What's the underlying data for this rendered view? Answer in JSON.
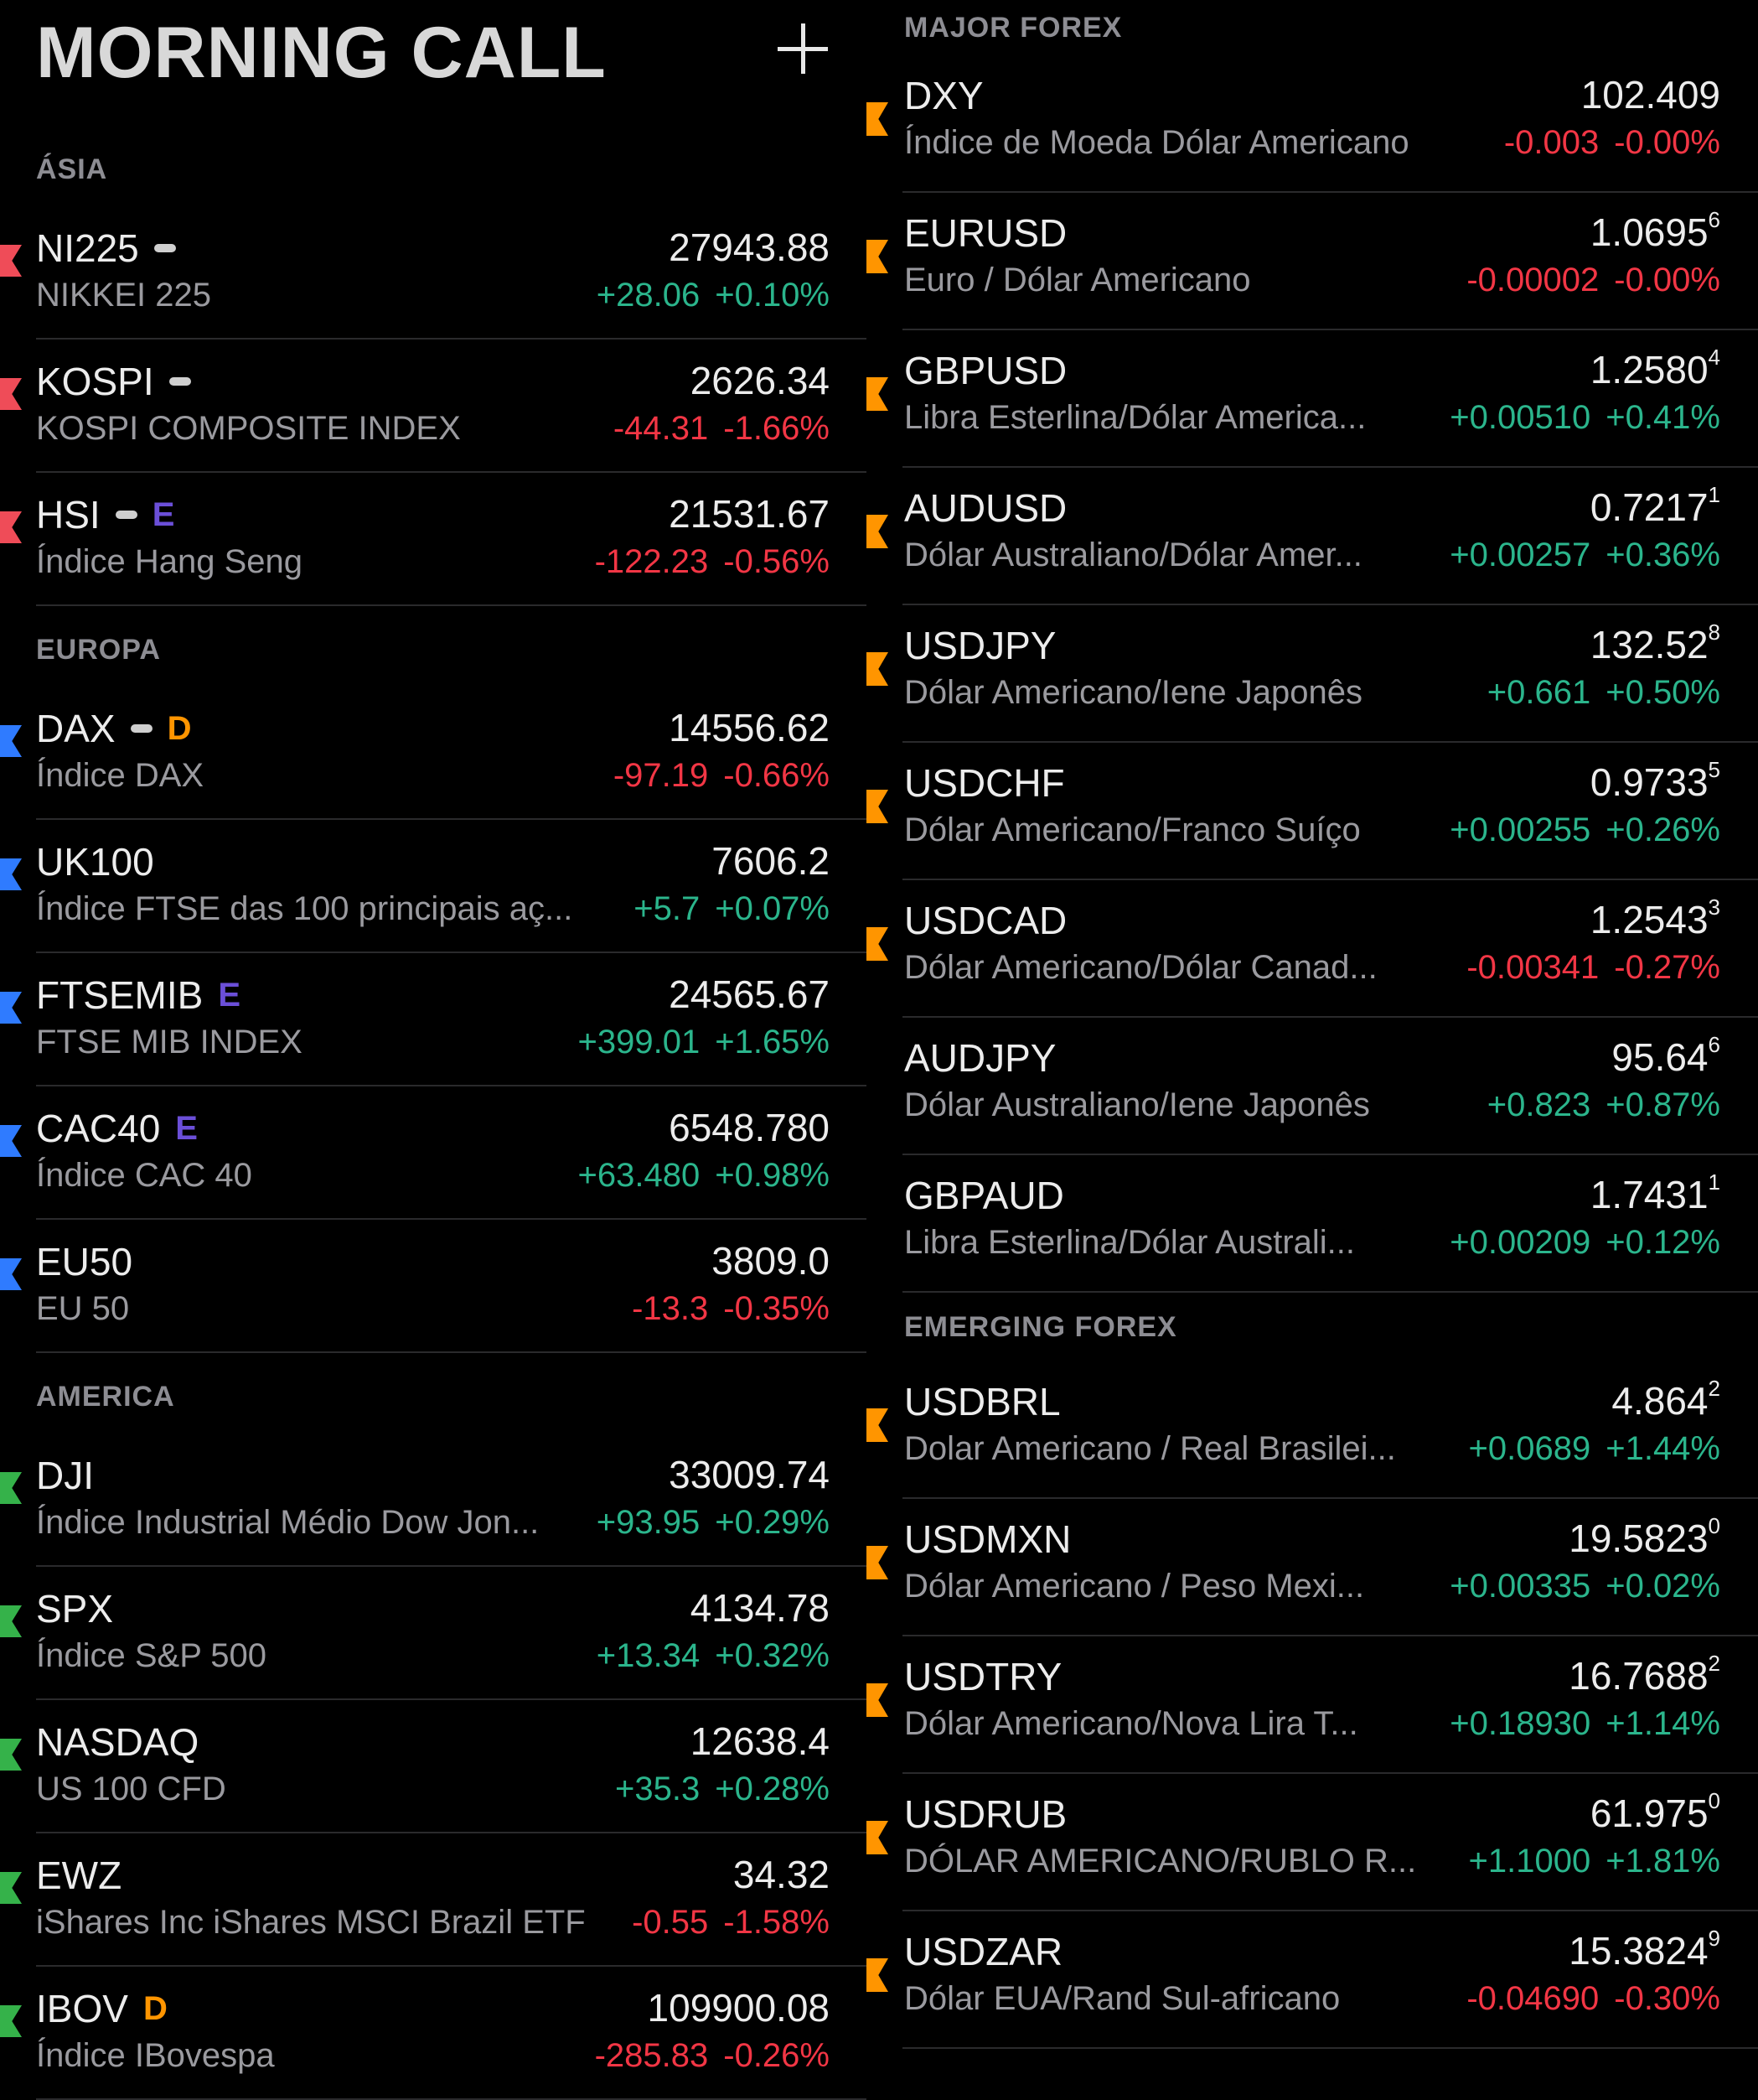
{
  "app": {
    "title": "MORNING CALL"
  },
  "colors": {
    "up": "#2bb58c",
    "down": "#f23645",
    "flag_asia": "#ef4c58",
    "flag_europe": "#2f7bff",
    "flag_america": "#35b24a",
    "flag_forex": "#ff9500",
    "badge_E": "#6b4fd8",
    "badge_D": "#ff9500"
  },
  "left": {
    "sections": [
      {
        "title": "ÁSIA",
        "flag": "red",
        "rows": [
          {
            "symbol": "NI225",
            "dash": true,
            "badge": "",
            "desc": "NIKKEI 225",
            "price": "27943.88",
            "sup": "",
            "chg": "+28.06",
            "pct": "+0.10%",
            "dir": "up"
          },
          {
            "symbol": "KOSPI",
            "dash": true,
            "badge": "",
            "desc": "KOSPI COMPOSITE INDEX",
            "price": "2626.34",
            "sup": "",
            "chg": "-44.31",
            "pct": "-1.66%",
            "dir": "down"
          },
          {
            "symbol": "HSI",
            "dash": true,
            "badge": "E",
            "desc": "Índice Hang Seng",
            "price": "21531.67",
            "sup": "",
            "chg": "-122.23",
            "pct": "-0.56%",
            "dir": "down"
          }
        ]
      },
      {
        "title": "EUROPA",
        "flag": "blue",
        "rows": [
          {
            "symbol": "DAX",
            "dash": true,
            "badge": "D",
            "desc": "Índice DAX",
            "price": "14556.62",
            "sup": "",
            "chg": "-97.19",
            "pct": "-0.66%",
            "dir": "down"
          },
          {
            "symbol": "UK100",
            "dash": false,
            "badge": "",
            "desc": "Índice FTSE das 100 principais aç...",
            "price": "7606.2",
            "sup": "",
            "chg": "+5.7",
            "pct": "+0.07%",
            "dir": "up"
          },
          {
            "symbol": "FTSEMIB",
            "dash": false,
            "badge": "E",
            "desc": "FTSE MIB INDEX",
            "price": "24565.67",
            "sup": "",
            "chg": "+399.01",
            "pct": "+1.65%",
            "dir": "up"
          },
          {
            "symbol": "CAC40",
            "dash": false,
            "badge": "E",
            "desc": "Índice CAC 40",
            "price": "6548.780",
            "sup": "",
            "chg": "+63.480",
            "pct": "+0.98%",
            "dir": "up"
          },
          {
            "symbol": "EU50",
            "dash": false,
            "badge": "",
            "desc": "EU 50",
            "price": "3809.0",
            "sup": "",
            "chg": "-13.3",
            "pct": "-0.35%",
            "dir": "down"
          }
        ]
      },
      {
        "title": "AMERICA",
        "flag": "green",
        "rows": [
          {
            "symbol": "DJI",
            "dash": false,
            "badge": "",
            "desc": "Índice Industrial Médio Dow Jon...",
            "price": "33009.74",
            "sup": "",
            "chg": "+93.95",
            "pct": "+0.29%",
            "dir": "up"
          },
          {
            "symbol": "SPX",
            "dash": false,
            "badge": "",
            "desc": "Índice S&P 500",
            "price": "4134.78",
            "sup": "",
            "chg": "+13.34",
            "pct": "+0.32%",
            "dir": "up"
          },
          {
            "symbol": "NASDAQ",
            "dash": false,
            "badge": "",
            "desc": "US 100 CFD",
            "price": "12638.4",
            "sup": "",
            "chg": "+35.3",
            "pct": "+0.28%",
            "dir": "up"
          },
          {
            "symbol": "EWZ",
            "dash": false,
            "badge": "",
            "desc": "iShares Inc iShares MSCI Brazil ETF",
            "price": "34.32",
            "sup": "",
            "chg": "-0.55",
            "pct": "-1.58%",
            "dir": "down"
          },
          {
            "symbol": "IBOV",
            "dash": false,
            "badge": "D",
            "desc": "Índice IBovespa",
            "price": "109900.08",
            "sup": "",
            "chg": "-285.83",
            "pct": "-0.26%",
            "dir": "down"
          }
        ]
      }
    ]
  },
  "right": {
    "sections": [
      {
        "title": "MAJOR FOREX",
        "flag": "orange",
        "rows": [
          {
            "symbol": "DXY",
            "dash": false,
            "badge": "",
            "desc": "Índice de Moeda Dólar Americano",
            "price": "102.409",
            "sup": "",
            "chg": "-0.003",
            "pct": "-0.00%",
            "dir": "down"
          },
          {
            "symbol": "EURUSD",
            "dash": false,
            "badge": "",
            "desc": "Euro / Dólar Americano",
            "price": "1.0695",
            "sup": "6",
            "chg": "-0.00002",
            "pct": "-0.00%",
            "dir": "down"
          },
          {
            "symbol": "GBPUSD",
            "dash": false,
            "badge": "",
            "desc": "Libra Esterlina/Dólar America...",
            "price": "1.2580",
            "sup": "4",
            "chg": "+0.00510",
            "pct": "+0.41%",
            "dir": "up"
          },
          {
            "symbol": "AUDUSD",
            "dash": false,
            "badge": "",
            "desc": "Dólar Australiano/Dólar Amer...",
            "price": "0.7217",
            "sup": "1",
            "chg": "+0.00257",
            "pct": "+0.36%",
            "dir": "up"
          },
          {
            "symbol": "USDJPY",
            "dash": false,
            "badge": "",
            "desc": "Dólar Americano/Iene Japonês",
            "price": "132.52",
            "sup": "8",
            "chg": "+0.661",
            "pct": "+0.50%",
            "dir": "up"
          },
          {
            "symbol": "USDCHF",
            "dash": false,
            "badge": "",
            "desc": "Dólar Americano/Franco Suíço",
            "price": "0.9733",
            "sup": "5",
            "chg": "+0.00255",
            "pct": "+0.26%",
            "dir": "up"
          },
          {
            "symbol": "USDCAD",
            "dash": false,
            "badge": "",
            "desc": "Dólar Americano/Dólar Canad...",
            "price": "1.2543",
            "sup": "3",
            "chg": "-0.00341",
            "pct": "-0.27%",
            "dir": "down"
          },
          {
            "symbol": "AUDJPY",
            "dash": false,
            "badge": "",
            "desc": "Dólar Australiano/Iene Japonês",
            "price": "95.64",
            "sup": "6",
            "chg": "+0.823",
            "pct": "+0.87%",
            "dir": "up",
            "noflag": true
          },
          {
            "symbol": "GBPAUD",
            "dash": false,
            "badge": "",
            "desc": "Libra Esterlina/Dólar Australi...",
            "price": "1.7431",
            "sup": "1",
            "chg": "+0.00209",
            "pct": "+0.12%",
            "dir": "up",
            "noflag": true
          }
        ]
      },
      {
        "title": "EMERGING FOREX",
        "flag": "orange",
        "rows": [
          {
            "symbol": "USDBRL",
            "dash": false,
            "badge": "",
            "desc": "Dolar Americano / Real Brasilei...",
            "price": "4.864",
            "sup": "2",
            "chg": "+0.0689",
            "pct": "+1.44%",
            "dir": "up"
          },
          {
            "symbol": "USDMXN",
            "dash": false,
            "badge": "",
            "desc": "Dólar Americano / Peso Mexi...",
            "price": "19.5823",
            "sup": "0",
            "chg": "+0.00335",
            "pct": "+0.02%",
            "dir": "up"
          },
          {
            "symbol": "USDTRY",
            "dash": false,
            "badge": "",
            "desc": "Dólar Americano/Nova Lira T...",
            "price": "16.7688",
            "sup": "2",
            "chg": "+0.18930",
            "pct": "+1.14%",
            "dir": "up"
          },
          {
            "symbol": "USDRUB",
            "dash": false,
            "badge": "",
            "desc": "DÓLAR AMERICANO/RUBLO R...",
            "price": "61.975",
            "sup": "0",
            "chg": "+1.1000",
            "pct": "+1.81%",
            "dir": "up"
          },
          {
            "symbol": "USDZAR",
            "dash": false,
            "badge": "",
            "desc": "Dólar EUA/Rand Sul-africano",
            "price": "15.3824",
            "sup": "9",
            "chg": "-0.04690",
            "pct": "-0.30%",
            "dir": "down"
          }
        ]
      }
    ]
  }
}
